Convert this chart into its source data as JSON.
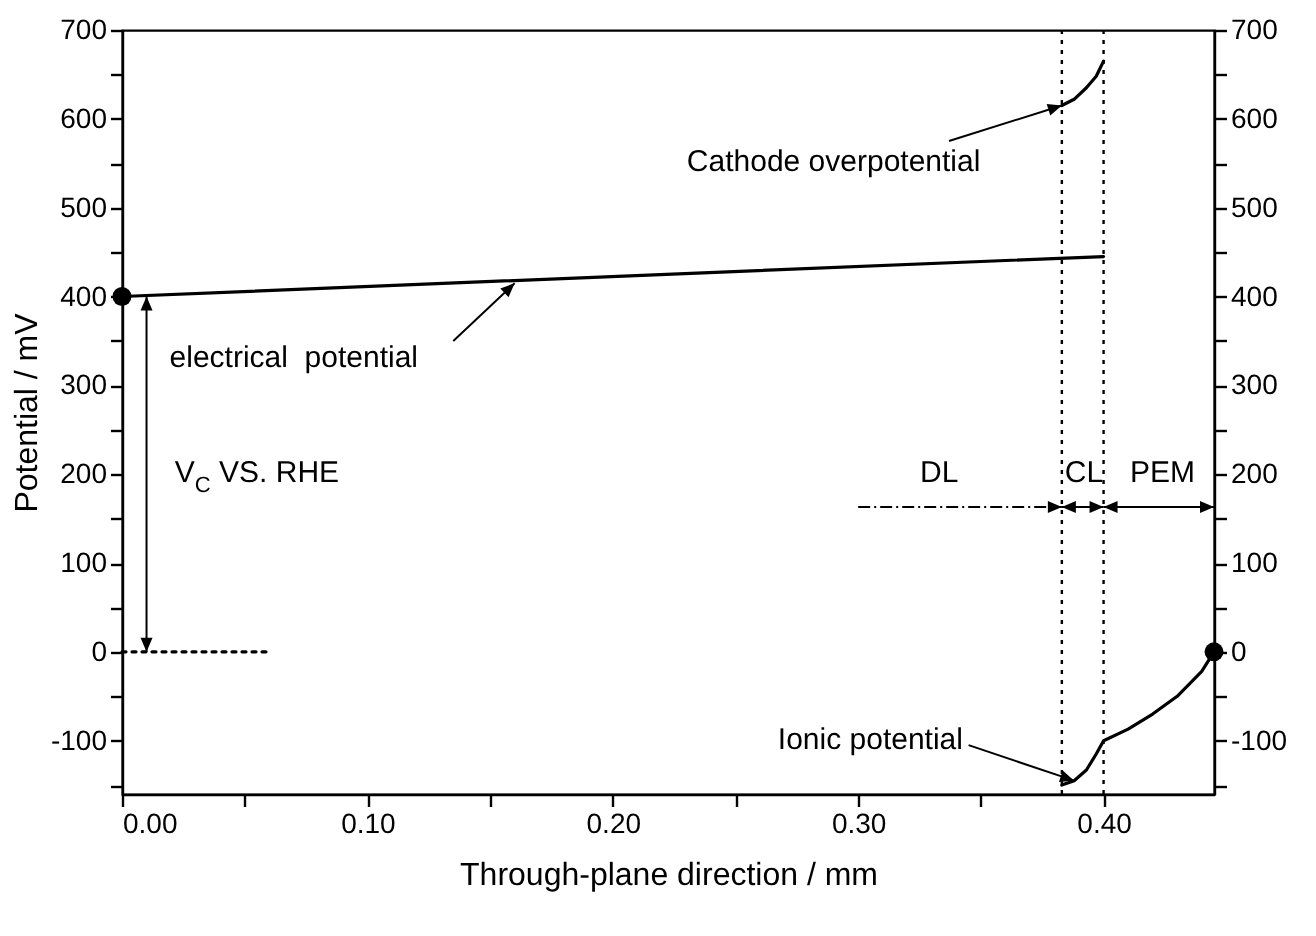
{
  "chart_data": {
    "type": "line",
    "xlabel": "Through-plane direction / mm",
    "ylabel": "Potential / mV",
    "xlim": [
      0,
      0.445
    ],
    "ylim": [
      -160,
      700
    ],
    "y2lim": [
      -160,
      700
    ],
    "xticks": [
      {
        "value": 0,
        "label": "0.00"
      },
      {
        "value": 0.05,
        "label": null
      },
      {
        "value": 0.1,
        "label": "0.10"
      },
      {
        "value": 0.15,
        "label": null
      },
      {
        "value": 0.2,
        "label": "0.20"
      },
      {
        "value": 0.25,
        "label": null
      },
      {
        "value": 0.3,
        "label": "0.30"
      },
      {
        "value": 0.35,
        "label": null
      },
      {
        "value": 0.4,
        "label": "0.40"
      }
    ],
    "yticks": [
      {
        "value": -150,
        "label": null
      },
      -100,
      {
        "value": -50,
        "label": null
      },
      0,
      {
        "value": 50,
        "label": null
      },
      100,
      {
        "value": 150,
        "label": null
      },
      200,
      {
        "value": 250,
        "label": null
      },
      300,
      {
        "value": 350,
        "label": null
      },
      400,
      {
        "value": 450,
        "label": null
      },
      500,
      {
        "value": 550,
        "label": null
      },
      600,
      {
        "value": 650,
        "label": null
      },
      700
    ],
    "y2ticks": [
      {
        "value": -150,
        "label": null
      },
      -100,
      {
        "value": -50,
        "label": null
      },
      0,
      {
        "value": 50,
        "label": null
      },
      100,
      {
        "value": 150,
        "label": null
      },
      200,
      {
        "value": 250,
        "label": null
      },
      300,
      {
        "value": 350,
        "label": null
      },
      400,
      {
        "value": 450,
        "label": null
      },
      500,
      {
        "value": 550,
        "label": null
      },
      600,
      {
        "value": 650,
        "label": null
      },
      700
    ],
    "grid": false,
    "line_style": "solid",
    "marker": "none",
    "series": [
      {
        "color": "#000000",
        "x": [
          0,
          0.4
        ],
        "values": [
          400,
          445
        ]
      },
      {
        "color": "#000000",
        "x": [
          0.383,
          0.388,
          0.393,
          0.397,
          0.4
        ],
        "values": [
          615,
          622,
          635,
          648,
          665
        ]
      },
      {
        "color": "#000000",
        "x": [
          0.383,
          0.388,
          0.393,
          0.397,
          0.4,
          0.41,
          0.42,
          0.43,
          0.44,
          0.445
        ],
        "values": [
          -150,
          -145,
          -133,
          -115,
          -100,
          -87,
          -70,
          -50,
          -22,
          0
        ]
      },
      {
        "color": "#000000",
        "line_style": "dotted",
        "x": [
          0,
          0.06
        ],
        "values": [
          0,
          0
        ]
      },
      {
        "type": "scatter",
        "marker": "circle",
        "color": "#000000",
        "x": [
          0,
          0.445
        ],
        "values": [
          400,
          0
        ]
      }
    ],
    "ref_lines": [
      {
        "axis": "x",
        "value": 0.383,
        "line_style": "dotted",
        "color": "#000000"
      },
      {
        "axis": "x",
        "value": 0.4,
        "line_style": "dotted",
        "color": "#000000"
      }
    ],
    "annotations": [
      {
        "text": "Cathode overpotential",
        "x": 0.383,
        "y": 615
      },
      {
        "text": "electrical  potential",
        "x": 0.16,
        "y": 415
      },
      "V$_{C}$ VS. RHE",
      {
        "text": "Ionic potential",
        "x": 0.388,
        "y": -145
      },
      "DL",
      "CL",
      "PEM"
    ]
  }
}
